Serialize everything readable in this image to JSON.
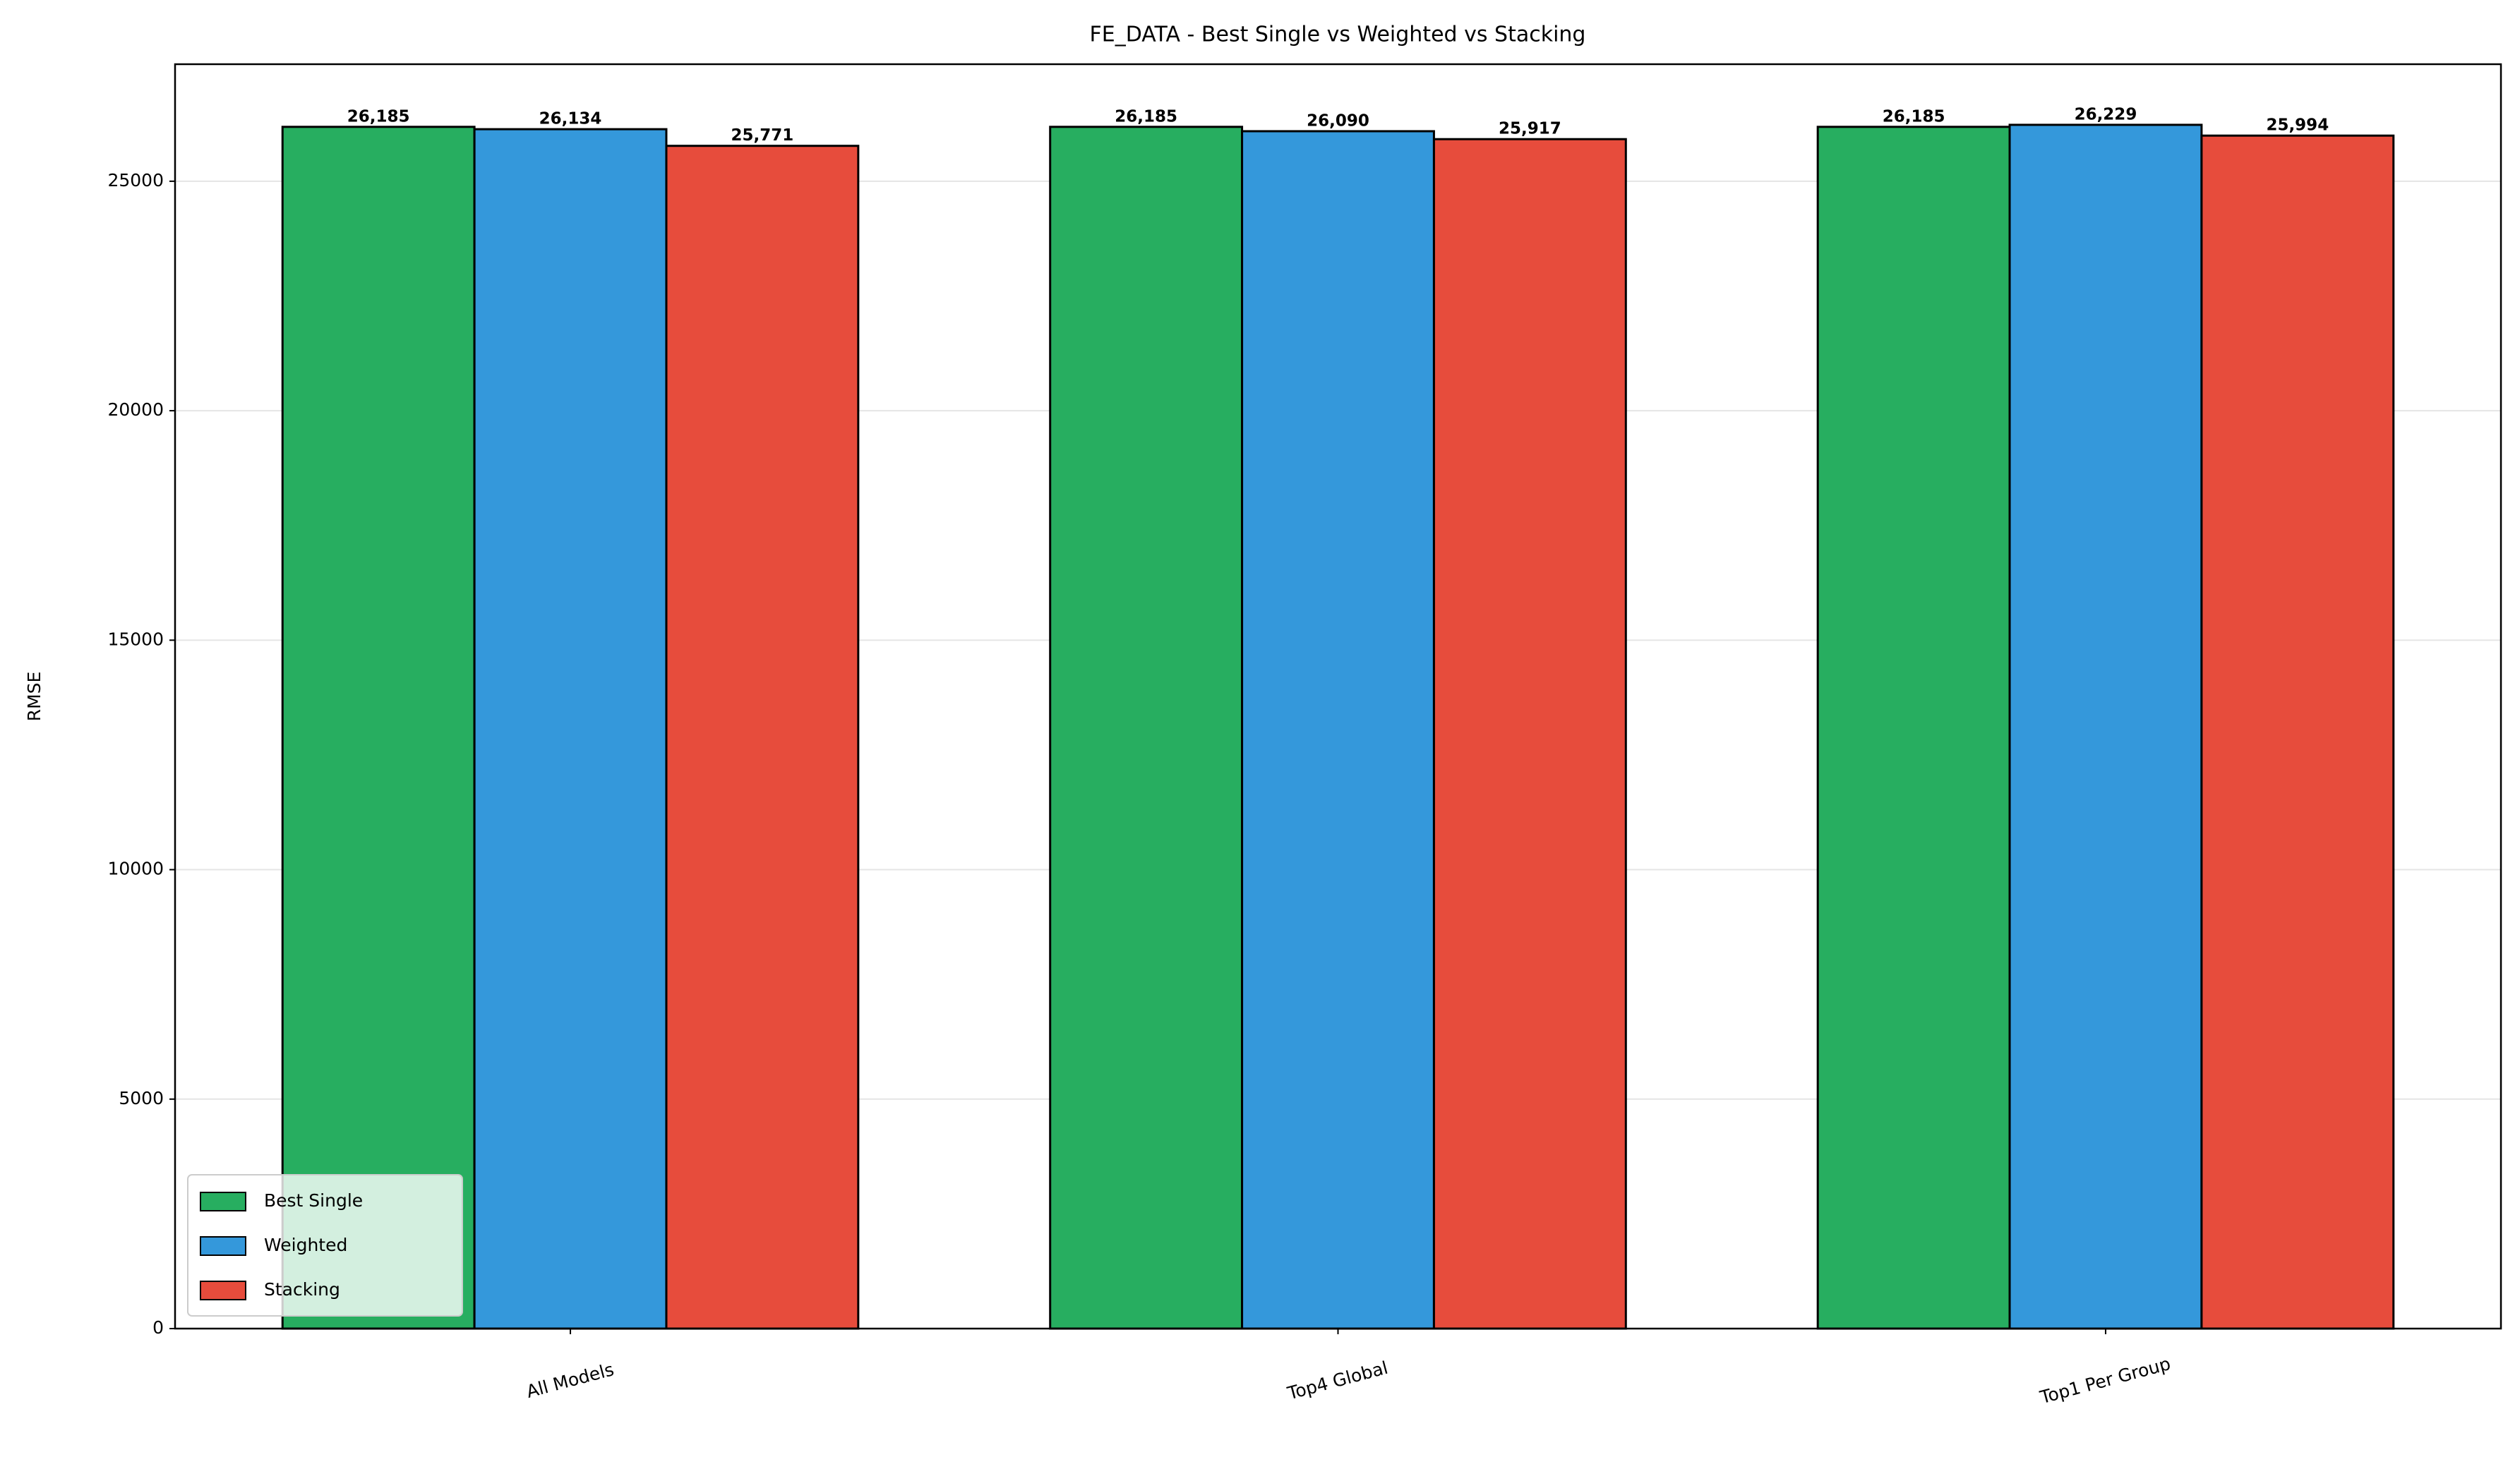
{
  "chart_data": {
    "type": "bar",
    "title": "FE_DATA - Best Single vs Weighted vs Stacking",
    "y_label": "RMSE",
    "categories": [
      "All Models",
      "Top4 Global",
      "Top1 Per Group"
    ],
    "series": [
      {
        "name": "Best Single",
        "color": "#27ae60",
        "values": [
          26185,
          26185,
          26185
        ],
        "value_labels": [
          "26,185",
          "26,185",
          "26,185"
        ]
      },
      {
        "name": "Weighted",
        "color": "#3498db",
        "values": [
          26134,
          26090,
          26229
        ],
        "value_labels": [
          "26,134",
          "26,090",
          "26,229"
        ]
      },
      {
        "name": "Stacking",
        "color": "#e74c3c",
        "values": [
          25771,
          25917,
          25994
        ],
        "value_labels": [
          "25,771",
          "25,917",
          "25,994"
        ]
      }
    ],
    "ylim": [
      0,
      27550
    ],
    "yticks": [
      0,
      5000,
      10000,
      15000,
      20000,
      25000
    ],
    "grid": true,
    "legend": "lower left"
  }
}
